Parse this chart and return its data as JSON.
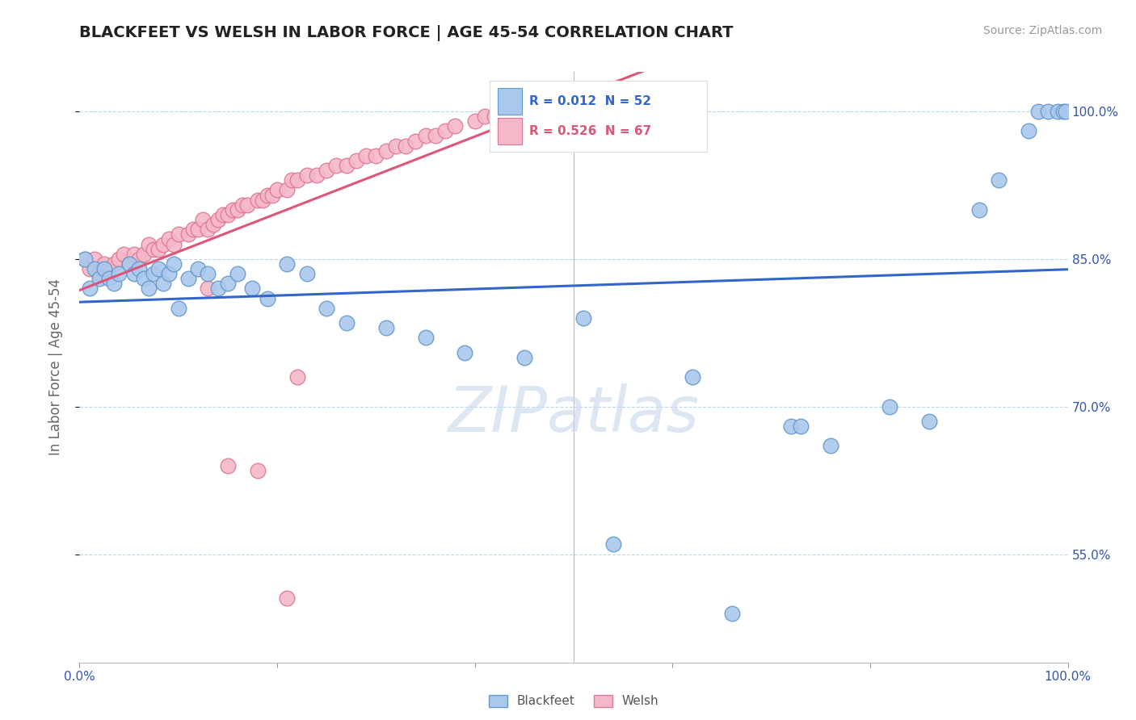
{
  "title": "BLACKFEET VS WELSH IN LABOR FORCE | AGE 45-54 CORRELATION CHART",
  "source_text": "Source: ZipAtlas.com",
  "ylabel": "In Labor Force | Age 45-54",
  "xlim": [
    0.0,
    1.0
  ],
  "ylim": [
    0.44,
    1.04
  ],
  "x_ticks": [
    0.0,
    0.2,
    0.4,
    0.6,
    0.8,
    1.0
  ],
  "y_ticks": [
    0.55,
    0.7,
    0.85,
    1.0
  ],
  "y_tick_labels": [
    "55.0%",
    "70.0%",
    "85.0%",
    "100.0%"
  ],
  "blackfeet_color": "#aac8ec",
  "welsh_color": "#f5b8c8",
  "blackfeet_edge": "#6699cc",
  "welsh_edge": "#e07895",
  "trend_blue": "#3366cc",
  "trend_pink": "#dd5577",
  "legend_R_blue": "R = 0.012",
  "legend_N_blue": "N = 52",
  "legend_R_pink": "R = 0.526",
  "legend_N_pink": "N = 67",
  "legend_label_blue": "Blackfeet",
  "legend_label_pink": "Welsh",
  "blackfeet_x": [
    0.005,
    0.01,
    0.015,
    0.02,
    0.025,
    0.03,
    0.035,
    0.04,
    0.05,
    0.055,
    0.06,
    0.065,
    0.07,
    0.075,
    0.08,
    0.085,
    0.09,
    0.095,
    0.1,
    0.11,
    0.12,
    0.13,
    0.14,
    0.15,
    0.16,
    0.175,
    0.19,
    0.21,
    0.23,
    0.25,
    0.27,
    0.31,
    0.35,
    0.39,
    0.45,
    0.51,
    0.62,
    0.72,
    0.73,
    0.76,
    0.82,
    0.86,
    0.91,
    0.93,
    0.96,
    0.97,
    0.98,
    0.99,
    0.995,
    0.998,
    0.54,
    0.66
  ],
  "blackfeet_y": [
    0.85,
    0.82,
    0.84,
    0.83,
    0.84,
    0.83,
    0.825,
    0.835,
    0.845,
    0.835,
    0.84,
    0.83,
    0.82,
    0.835,
    0.84,
    0.825,
    0.835,
    0.845,
    0.8,
    0.83,
    0.84,
    0.835,
    0.82,
    0.825,
    0.835,
    0.82,
    0.81,
    0.845,
    0.835,
    0.8,
    0.785,
    0.78,
    0.77,
    0.755,
    0.75,
    0.79,
    0.73,
    0.68,
    0.68,
    0.66,
    0.7,
    0.685,
    0.9,
    0.93,
    0.98,
    1.0,
    1.0,
    1.0,
    1.0,
    1.0,
    0.56,
    0.49
  ],
  "welsh_x": [
    0.005,
    0.01,
    0.015,
    0.02,
    0.025,
    0.03,
    0.035,
    0.04,
    0.045,
    0.05,
    0.055,
    0.06,
    0.065,
    0.07,
    0.075,
    0.08,
    0.085,
    0.09,
    0.095,
    0.1,
    0.11,
    0.115,
    0.12,
    0.125,
    0.13,
    0.135,
    0.14,
    0.145,
    0.15,
    0.155,
    0.16,
    0.165,
    0.17,
    0.18,
    0.185,
    0.19,
    0.195,
    0.2,
    0.21,
    0.215,
    0.22,
    0.23,
    0.24,
    0.25,
    0.26,
    0.27,
    0.28,
    0.29,
    0.3,
    0.31,
    0.32,
    0.33,
    0.34,
    0.35,
    0.36,
    0.37,
    0.38,
    0.4,
    0.41,
    0.42,
    0.44,
    0.46,
    0.13,
    0.22,
    0.15,
    0.18,
    0.21
  ],
  "welsh_y": [
    0.85,
    0.84,
    0.85,
    0.835,
    0.845,
    0.84,
    0.845,
    0.85,
    0.855,
    0.845,
    0.855,
    0.85,
    0.855,
    0.865,
    0.86,
    0.86,
    0.865,
    0.87,
    0.865,
    0.875,
    0.875,
    0.88,
    0.88,
    0.89,
    0.88,
    0.885,
    0.89,
    0.895,
    0.895,
    0.9,
    0.9,
    0.905,
    0.905,
    0.91,
    0.91,
    0.915,
    0.915,
    0.92,
    0.92,
    0.93,
    0.93,
    0.935,
    0.935,
    0.94,
    0.945,
    0.945,
    0.95,
    0.955,
    0.955,
    0.96,
    0.965,
    0.965,
    0.97,
    0.975,
    0.975,
    0.98,
    0.985,
    0.99,
    0.995,
    0.995,
    1.0,
    1.0,
    0.82,
    0.73,
    0.64,
    0.635,
    0.505
  ]
}
